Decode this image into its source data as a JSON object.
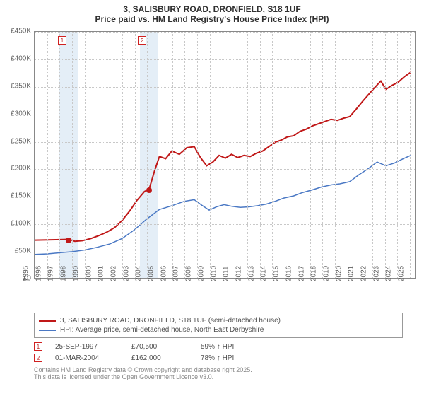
{
  "title_line1": "3, SALISBURY ROAD, DRONFIELD, S18 1UF",
  "title_line2": "Price paid vs. HM Land Registry's House Price Index (HPI)",
  "chart": {
    "type": "line",
    "x_min": 1995,
    "x_max": 2025.5,
    "y_min": 0,
    "y_max": 450000,
    "y_tick_step": 50000,
    "y_tick_labels": [
      "£0",
      "£50K",
      "£100K",
      "£150K",
      "£200K",
      "£250K",
      "£300K",
      "£350K",
      "£400K",
      "£450K"
    ],
    "x_tick_step": 1,
    "x_tick_labels": [
      "1995",
      "1996",
      "1997",
      "1998",
      "1999",
      "2000",
      "2001",
      "2002",
      "2003",
      "2004",
      "2005",
      "2006",
      "2007",
      "2008",
      "2009",
      "2010",
      "2011",
      "2012",
      "2013",
      "2014",
      "2015",
      "2016",
      "2017",
      "2018",
      "2019",
      "2020",
      "2021",
      "2022",
      "2023",
      "2024",
      "2025"
    ],
    "grid_color": "#c8c8c8",
    "background_color": "#ffffff",
    "series": [
      {
        "name": "price_paid",
        "legend": "3, SALISBURY ROAD, DRONFIELD, S18 1UF (semi-detached house)",
        "color": "#c01818",
        "width": 2,
        "points": [
          [
            1995.0,
            69000
          ],
          [
            1996.0,
            69500
          ],
          [
            1997.0,
            70000
          ],
          [
            1997.73,
            70500
          ],
          [
            1998.2,
            67000
          ],
          [
            1998.8,
            68000
          ],
          [
            1999.5,
            72000
          ],
          [
            2000.2,
            78000
          ],
          [
            2000.8,
            84000
          ],
          [
            2001.4,
            92000
          ],
          [
            2002.0,
            105000
          ],
          [
            2002.6,
            122000
          ],
          [
            2003.2,
            142000
          ],
          [
            2003.8,
            158000
          ],
          [
            2004.17,
            162000
          ],
          [
            2004.6,
            195000
          ],
          [
            2005.0,
            222000
          ],
          [
            2005.5,
            218000
          ],
          [
            2006.0,
            232000
          ],
          [
            2006.6,
            226000
          ],
          [
            2007.2,
            238000
          ],
          [
            2007.8,
            240000
          ],
          [
            2008.3,
            220000
          ],
          [
            2008.8,
            205000
          ],
          [
            2009.3,
            212000
          ],
          [
            2009.8,
            224000
          ],
          [
            2010.3,
            219000
          ],
          [
            2010.8,
            226000
          ],
          [
            2011.3,
            220000
          ],
          [
            2011.8,
            224000
          ],
          [
            2012.3,
            222000
          ],
          [
            2012.8,
            228000
          ],
          [
            2013.3,
            232000
          ],
          [
            2013.8,
            240000
          ],
          [
            2014.3,
            248000
          ],
          [
            2014.8,
            252000
          ],
          [
            2015.3,
            258000
          ],
          [
            2015.8,
            260000
          ],
          [
            2016.3,
            268000
          ],
          [
            2016.8,
            272000
          ],
          [
            2017.3,
            278000
          ],
          [
            2017.8,
            282000
          ],
          [
            2018.3,
            286000
          ],
          [
            2018.8,
            290000
          ],
          [
            2019.3,
            288000
          ],
          [
            2019.8,
            292000
          ],
          [
            2020.3,
            295000
          ],
          [
            2020.8,
            308000
          ],
          [
            2021.3,
            322000
          ],
          [
            2021.8,
            335000
          ],
          [
            2022.3,
            348000
          ],
          [
            2022.8,
            360000
          ],
          [
            2023.2,
            345000
          ],
          [
            2023.7,
            352000
          ],
          [
            2024.2,
            358000
          ],
          [
            2024.7,
            368000
          ],
          [
            2025.2,
            376000
          ]
        ]
      },
      {
        "name": "hpi",
        "legend": "HPI: Average price, semi-detached house, North East Derbyshire",
        "color": "#4a78c4",
        "width": 1.5,
        "points": [
          [
            1995.0,
            43000
          ],
          [
            1996.0,
            44000
          ],
          [
            1997.0,
            46000
          ],
          [
            1998.0,
            48000
          ],
          [
            1999.0,
            51000
          ],
          [
            2000.0,
            56000
          ],
          [
            2001.0,
            62000
          ],
          [
            2002.0,
            72000
          ],
          [
            2003.0,
            88000
          ],
          [
            2004.0,
            108000
          ],
          [
            2005.0,
            125000
          ],
          [
            2006.0,
            132000
          ],
          [
            2007.0,
            140000
          ],
          [
            2007.8,
            143000
          ],
          [
            2008.4,
            133000
          ],
          [
            2009.0,
            124000
          ],
          [
            2009.6,
            130000
          ],
          [
            2010.2,
            134000
          ],
          [
            2010.8,
            131000
          ],
          [
            2011.5,
            129000
          ],
          [
            2012.2,
            130000
          ],
          [
            2012.9,
            132000
          ],
          [
            2013.6,
            135000
          ],
          [
            2014.3,
            140000
          ],
          [
            2015.0,
            146000
          ],
          [
            2015.8,
            150000
          ],
          [
            2016.5,
            156000
          ],
          [
            2017.3,
            161000
          ],
          [
            2018.0,
            166000
          ],
          [
            2018.8,
            170000
          ],
          [
            2019.5,
            172000
          ],
          [
            2020.3,
            176000
          ],
          [
            2021.0,
            188000
          ],
          [
            2021.8,
            200000
          ],
          [
            2022.5,
            212000
          ],
          [
            2023.2,
            205000
          ],
          [
            2023.9,
            210000
          ],
          [
            2024.6,
            218000
          ],
          [
            2025.2,
            224000
          ]
        ]
      }
    ],
    "shaded_bands": [
      {
        "from": 1997.0,
        "to": 1998.5
      },
      {
        "from": 2003.4,
        "to": 2004.9
      }
    ],
    "markers": [
      {
        "label": "1",
        "x": 1997.2,
        "y_top": true
      },
      {
        "label": "2",
        "x": 2003.6,
        "y_top": true
      }
    ],
    "sale_points": [
      {
        "x": 1997.73,
        "y": 70500
      },
      {
        "x": 2004.17,
        "y": 162000
      }
    ]
  },
  "sales": [
    {
      "marker": "1",
      "date": "25-SEP-1997",
      "price": "£70,500",
      "hpi": "59% ↑ HPI"
    },
    {
      "marker": "2",
      "date": "01-MAR-2004",
      "price": "£162,000",
      "hpi": "78% ↑ HPI"
    }
  ],
  "footnote_line1": "Contains HM Land Registry data © Crown copyright and database right 2025.",
  "footnote_line2": "This data is licensed under the Open Government Licence v3.0."
}
